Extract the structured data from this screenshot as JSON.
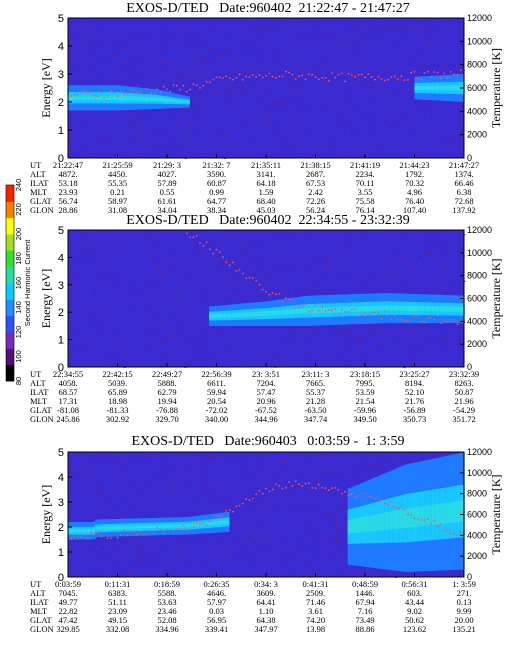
{
  "colorbar": {
    "label": "Second Harmonic Current",
    "ticks": [
      "80",
      "100",
      "120",
      "140",
      "160",
      "180",
      "200",
      "220",
      "240"
    ],
    "range": [
      80,
      240
    ],
    "colors": [
      "#000000",
      "#5a0c78",
      "#7a2ab8",
      "#3050ff",
      "#1e90ff",
      "#00d0ff",
      "#20e0a0",
      "#30e030",
      "#a0e020",
      "#ffff00",
      "#ff8000",
      "#ff2000"
    ]
  },
  "chart_data": [
    {
      "type": "heatmap",
      "title": "EXOS-D/TED   Date:960402  21:22:47 - 21:47:27",
      "ylabel": "Energy [eV]",
      "y2label": "Temperature [K]",
      "ylim": [
        0,
        5
      ],
      "y2lim": [
        0,
        12000
      ],
      "yticks": [
        "0",
        "1",
        "2",
        "3",
        "4",
        "5"
      ],
      "y2ticks": [
        "0",
        "2000",
        "4000",
        "6000",
        "8000",
        "10000",
        "12000"
      ],
      "band": [
        [
          0.0,
          1.7,
          2.6
        ],
        [
          0.12,
          1.7,
          2.6
        ],
        [
          0.22,
          1.75,
          2.45
        ],
        [
          0.3,
          1.8,
          2.2
        ],
        [
          0.32,
          null,
          null
        ],
        [
          0.86,
          null,
          null
        ],
        [
          0.87,
          2.1,
          2.9
        ],
        [
          1.0,
          2.0,
          3.0
        ]
      ],
      "temperature": [
        [
          0.0,
          5400
        ],
        [
          0.15,
          5600
        ],
        [
          0.3,
          6000
        ],
        [
          0.4,
          6800
        ],
        [
          0.55,
          7100
        ],
        [
          0.7,
          6900
        ],
        [
          0.85,
          7000
        ],
        [
          1.0,
          7200
        ]
      ],
      "ephemeris": [
        {
          "label": "UT",
          "values": [
            "21:22:47",
            "21:25:59",
            "21:29: 3",
            "21:32: 7",
            "21:35:11",
            "21:38:15",
            "21:41:19",
            "21:44:23",
            "21:47:27"
          ]
        },
        {
          "label": "ALT",
          "values": [
            "4872.",
            "4450.",
            "4027.",
            "3590.",
            "3141.",
            "2687.",
            "2234.",
            "1792.",
            "1374."
          ]
        },
        {
          "label": "ILAT",
          "values": [
            "53.18",
            "55.35",
            "57.89",
            "60.87",
            "64.18",
            "67.53",
            "70.11",
            "70.32",
            "66.46"
          ]
        },
        {
          "label": "MLT",
          "values": [
            "23.93",
            "0.21",
            "0.55",
            "0.99",
            "1.59",
            "2.42",
            "3.55",
            "4.96",
            "6.38"
          ]
        },
        {
          "label": "GLAT",
          "values": [
            "56.74",
            "58.97",
            "61.61",
            "64.77",
            "68.40",
            "72.26",
            "75.58",
            "76.40",
            "72.68"
          ]
        },
        {
          "label": "GLON",
          "values": [
            "28.86",
            "31.08",
            "34.04",
            "38.34",
            "45.03",
            "56.24",
            "76.14",
            "107.40",
            "137.92"
          ]
        }
      ]
    },
    {
      "type": "heatmap",
      "title": "EXOS-D/TED   Date:960402  22:34:55 - 23:32:39",
      "ylabel": "Energy [eV]",
      "y2label": "Temperature [K]",
      "ylim": [
        0,
        5
      ],
      "y2lim": [
        0,
        12000
      ],
      "yticks": [
        "0",
        "1",
        "2",
        "3",
        "4",
        "5"
      ],
      "y2ticks": [
        "0",
        "2000",
        "4000",
        "6000",
        "8000",
        "10000",
        "12000"
      ],
      "band": [
        [
          0.0,
          null,
          null
        ],
        [
          0.34,
          null,
          null
        ],
        [
          0.35,
          1.5,
          2.2
        ],
        [
          0.5,
          1.5,
          2.4
        ],
        [
          0.6,
          1.5,
          2.6
        ],
        [
          0.8,
          1.6,
          2.7
        ],
        [
          1.0,
          1.6,
          2.6
        ]
      ],
      "temperature": [
        [
          0.3,
          11800
        ],
        [
          0.4,
          9500
        ],
        [
          0.5,
          6500
        ],
        [
          0.6,
          5200
        ],
        [
          0.75,
          4700
        ],
        [
          0.9,
          4200
        ],
        [
          1.0,
          4000
        ]
      ],
      "ephemeris": [
        {
          "label": "UT",
          "values": [
            "22:34:55",
            "22:42:15",
            "22:49:27",
            "22:56:39",
            "23: 3:51",
            "23:11: 3",
            "23:18:15",
            "23:25:27",
            "23:32:39"
          ]
        },
        {
          "label": "ALT",
          "values": [
            "4058.",
            "5039.",
            "5888.",
            "6611.",
            "7204.",
            "7665.",
            "7995.",
            "8194.",
            "8263."
          ]
        },
        {
          "label": "ILAT",
          "values": [
            "68.57",
            "65.89",
            "62.79",
            "59.94",
            "57.47",
            "55.37",
            "53.59",
            "52.10",
            "50.87"
          ]
        },
        {
          "label": "MLT",
          "values": [
            "17.31",
            "18.98",
            "19.94",
            "20.54",
            "20.96",
            "21.28",
            "21.54",
            "21.76",
            "21.96"
          ]
        },
        {
          "label": "GLAT",
          "values": [
            "-81.08",
            "-81.33",
            "-76.88",
            "-72.02",
            "-67.52",
            "-63.50",
            "-59.96",
            "-56.89",
            "-54.29"
          ]
        },
        {
          "label": "GLON",
          "values": [
            "245.86",
            "302.92",
            "329.70",
            "340.00",
            "344.96",
            "347.74",
            "349.50",
            "350.73",
            "351.72"
          ]
        }
      ]
    },
    {
      "type": "heatmap",
      "title": "EXOS-D/TED   Date:960403   0:03:59 -  1: 3:59",
      "ylabel": "Energy [eV]",
      "y2label": "Temperature [K]",
      "ylim": [
        0,
        5
      ],
      "y2lim": [
        0,
        12000
      ],
      "yticks": [
        "0",
        "1",
        "2",
        "3",
        "4",
        "5"
      ],
      "y2ticks": [
        "0",
        "2000",
        "4000",
        "6000",
        "8000",
        "10000",
        "12000"
      ],
      "band": [
        [
          0.0,
          1.5,
          2.2
        ],
        [
          0.06,
          1.5,
          2.2
        ],
        [
          0.07,
          1.6,
          2.3
        ],
        [
          0.3,
          1.7,
          2.4
        ],
        [
          0.4,
          1.8,
          2.6
        ],
        [
          0.43,
          null,
          null
        ],
        [
          0.68,
          null,
          null
        ],
        [
          0.7,
          0.5,
          3.5
        ],
        [
          0.85,
          0.2,
          4.5
        ],
        [
          1.0,
          0.3,
          5.0
        ]
      ],
      "temperature": [
        [
          0.0,
          3800
        ],
        [
          0.2,
          4300
        ],
        [
          0.35,
          5000
        ],
        [
          0.42,
          6500
        ],
        [
          0.5,
          8500
        ],
        [
          0.6,
          9000
        ],
        [
          0.7,
          8200
        ],
        [
          0.8,
          7200
        ],
        [
          0.9,
          5500
        ],
        [
          1.0,
          4000
        ]
      ],
      "ephemeris": [
        {
          "label": "UT",
          "values": [
            "0:03:59",
            "0:11:31",
            "0:18:59",
            "0:26:35",
            "0:34: 3",
            "0:41:31",
            "0:48:59",
            "0:56:31",
            "1: 3:59"
          ]
        },
        {
          "label": "ALT",
          "values": [
            "7045.",
            "6383.",
            "5588.",
            "4646.",
            "3609.",
            "2509.",
            "1446.",
            "603.",
            "271."
          ]
        },
        {
          "label": "ILAT",
          "values": [
            "49.77",
            "51.11",
            "53.63",
            "57.97",
            "64.41",
            "71.46",
            "67.94",
            "43.44",
            "0.13"
          ]
        },
        {
          "label": "MLT",
          "values": [
            "22.82",
            "23.09",
            "23.46",
            "0.03",
            "1.10",
            "3.61",
            "7.16",
            "9.02",
            "9.99"
          ]
        },
        {
          "label": "GLAT",
          "values": [
            "47.42",
            "49.15",
            "52.08",
            "56.95",
            "64.38",
            "74.20",
            "73.49",
            "50.62",
            "20.00"
          ]
        },
        {
          "label": "GLON",
          "values": [
            "329.85",
            "332.08",
            "334.96",
            "339.41",
            "347.97",
            "13.98",
            "88.86",
            "123.62",
            "135.21"
          ]
        }
      ]
    }
  ]
}
